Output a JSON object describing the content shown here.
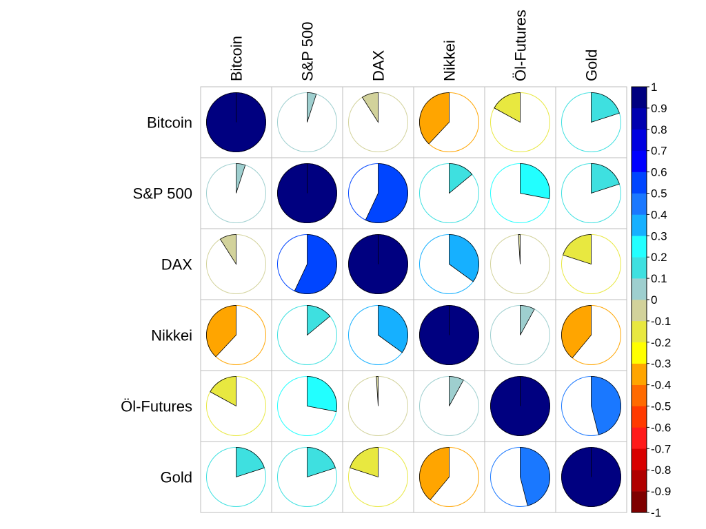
{
  "chart_data": {
    "type": "heatmap",
    "style": "pie-correlogram",
    "title": "",
    "variables": [
      "Bitcoin",
      "S&P 500",
      "DAX",
      "Nikkei",
      "Öl-Futures",
      "Gold"
    ],
    "matrix": [
      [
        1.0,
        0.05,
        -0.09,
        -0.38,
        -0.17,
        0.2
      ],
      [
        0.05,
        1.0,
        0.57,
        0.14,
        0.28,
        0.2
      ],
      [
        -0.09,
        0.57,
        1.0,
        0.35,
        -0.01,
        -0.2
      ],
      [
        -0.38,
        0.14,
        0.35,
        1.0,
        0.08,
        -0.39
      ],
      [
        -0.17,
        0.28,
        -0.01,
        0.08,
        1.0,
        0.46
      ],
      [
        0.2,
        0.2,
        -0.2,
        -0.39,
        0.46,
        1.0
      ]
    ],
    "legend": {
      "range": [
        -1,
        1
      ],
      "ticks": [
        "1",
        "0.9",
        "0.8",
        "0.7",
        "0.6",
        "0.5",
        "0.4",
        "0.3",
        "0.2",
        "0.1",
        "0",
        "-0.1",
        "-0.2",
        "-0.3",
        "-0.4",
        "-0.5",
        "-0.6",
        "-0.7",
        "-0.8",
        "-0.9",
        "-1"
      ],
      "colors_low_to_high": [
        "#7f0000",
        "#b00000",
        "#d80000",
        "#ff1a1a",
        "#ff3a00",
        "#ff6a00",
        "#ffa500",
        "#ffff00",
        "#e8e840",
        "#d2d29b",
        "#9ecfcf",
        "#3ee0e0",
        "#22ffff",
        "#16b0ff",
        "#1a78ff",
        "#0045ff",
        "#0000ff",
        "#0000e0",
        "#0000b0",
        "#000080"
      ]
    },
    "grid": true
  }
}
